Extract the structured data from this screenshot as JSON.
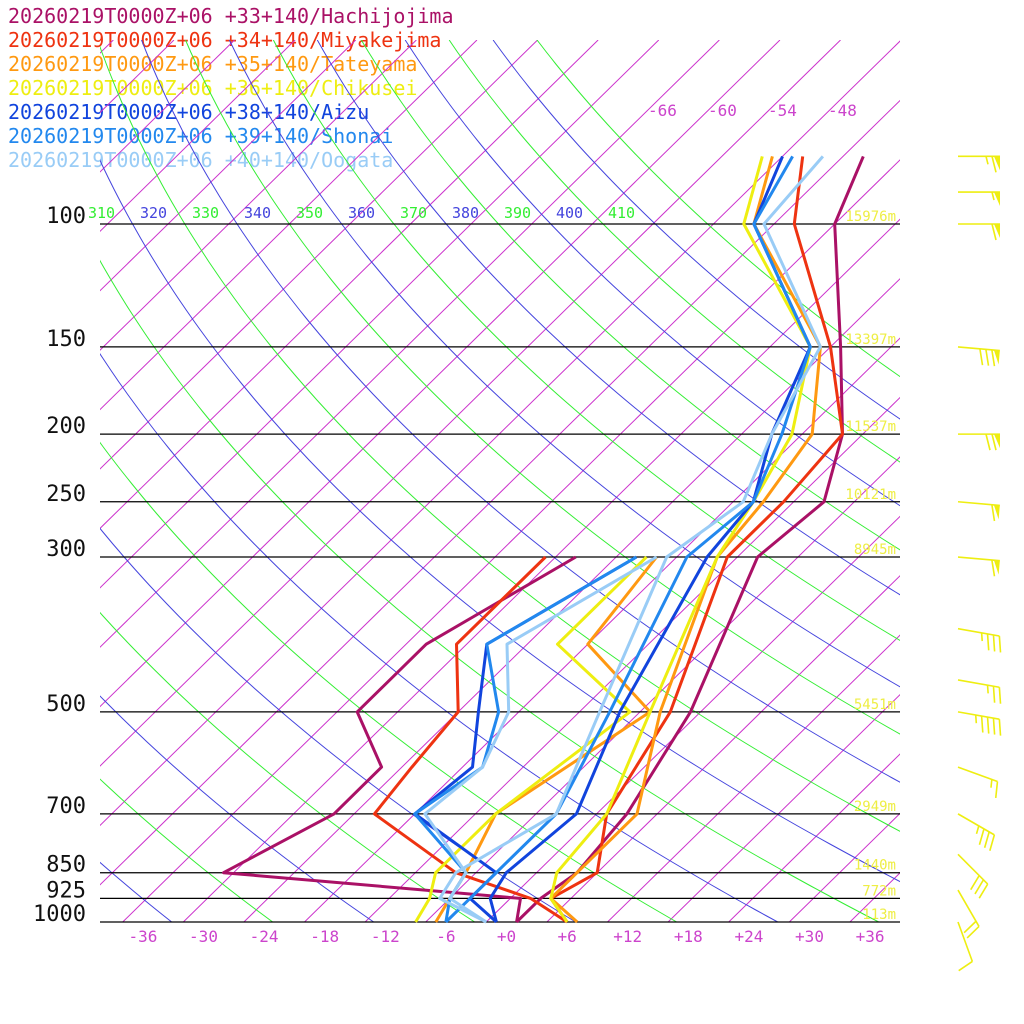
{
  "chart_data": {
    "type": "line",
    "title": "",
    "xlabel": "",
    "ylabel": "",
    "x_unit": "temperature (C)",
    "y_unit": "pressure (hPa)",
    "xlim": [
      -40,
      40
    ],
    "ylim": [
      1000,
      100
    ],
    "x_ticks": [
      "-36",
      "-30",
      "-24",
      "-18",
      "-12",
      "-6",
      "+0",
      "+6",
      "+12",
      "+18",
      "+24",
      "+30",
      "+36"
    ],
    "pressure_levels": [
      {
        "label": "100",
        "p": 100,
        "height": "15976m"
      },
      {
        "label": "150",
        "p": 150,
        "height": "13397m"
      },
      {
        "label": "200",
        "p": 200,
        "height": "11537m"
      },
      {
        "label": "250",
        "p": 250,
        "height": "10121m"
      },
      {
        "label": "300",
        "p": 300,
        "height": "8945m"
      },
      {
        "label": "500",
        "p": 500,
        "height": "5451m"
      },
      {
        "label": "700",
        "p": 700,
        "height": "2949m"
      },
      {
        "label": "850",
        "p": 850,
        "height": "1440m"
      },
      {
        "label": "925",
        "p": 925,
        "height": "772m"
      },
      {
        "label": "1000",
        "p": 1000,
        "height": "113m"
      }
    ],
    "isotherm_labels_top": [
      "-66",
      "-60",
      "-54",
      "-48"
    ],
    "theta_labels": [
      {
        "label": "310",
        "color": "#33ee33"
      },
      {
        "label": "320",
        "color": "#4444dd"
      },
      {
        "label": "330",
        "color": "#33ee33"
      },
      {
        "label": "340",
        "color": "#4444dd"
      },
      {
        "label": "350",
        "color": "#33ee33"
      },
      {
        "label": "360",
        "color": "#4444dd"
      },
      {
        "label": "370",
        "color": "#33ee33"
      },
      {
        "label": "380",
        "color": "#4444dd"
      },
      {
        "label": "390",
        "color": "#33ee33"
      },
      {
        "label": "400",
        "color": "#4444dd"
      },
      {
        "label": "410",
        "color": "#33ee33"
      }
    ],
    "series": [
      {
        "name": "20260219T0000Z+06 +33+140/Hachijojima",
        "color": "#aa1166",
        "temperature": [
          [
            1000,
            1
          ],
          [
            925,
            1
          ],
          [
            850,
            2
          ],
          [
            700,
            1
          ],
          [
            500,
            -3
          ],
          [
            300,
            -12
          ],
          [
            250,
            -11
          ],
          [
            200,
            -16
          ],
          [
            150,
            -25
          ],
          [
            100,
            -38
          ],
          [
            80,
            -42
          ]
        ],
        "dewpoint": [
          [
            1000,
            1
          ],
          [
            925,
            -1
          ],
          [
            850,
            -33
          ],
          [
            700,
            -28
          ],
          [
            600,
            -28
          ],
          [
            500,
            -36
          ],
          [
            400,
            -36
          ],
          [
            300,
            -30
          ]
        ]
      },
      {
        "name": "20260219T0000Z+06 +34+140/Miyakejima",
        "color": "#ee3311",
        "temperature": [
          [
            1000,
            6
          ],
          [
            925,
            2
          ],
          [
            850,
            4
          ],
          [
            700,
            -1
          ],
          [
            500,
            -5
          ],
          [
            300,
            -15
          ],
          [
            250,
            -15
          ],
          [
            200,
            -16
          ],
          [
            150,
            -26
          ],
          [
            100,
            -42
          ],
          [
            80,
            -48
          ]
        ],
        "dewpoint": [
          [
            1000,
            6
          ],
          [
            925,
            0
          ],
          [
            850,
            -10
          ],
          [
            700,
            -24
          ],
          [
            600,
            -25
          ],
          [
            500,
            -26
          ],
          [
            400,
            -33
          ],
          [
            300,
            -33
          ]
        ]
      },
      {
        "name": "20260219T0000Z+06 +35+140/Tateyama",
        "color": "#ff9911",
        "temperature": [
          [
            1000,
            7
          ],
          [
            925,
            2
          ],
          [
            850,
            2
          ],
          [
            700,
            2
          ],
          [
            500,
            -6
          ],
          [
            300,
            -16
          ],
          [
            250,
            -17
          ],
          [
            200,
            -19
          ],
          [
            150,
            -27
          ],
          [
            100,
            -46
          ],
          [
            80,
            -51
          ]
        ],
        "dewpoint": [
          [
            1000,
            -7
          ],
          [
            925,
            -8
          ],
          [
            850,
            -9
          ],
          [
            700,
            -12
          ],
          [
            500,
            -7
          ],
          [
            400,
            -20
          ],
          [
            300,
            -22
          ]
        ]
      },
      {
        "name": "20260219T0000Z+06 +36+140/Chikusei",
        "color": "#eeee11",
        "temperature": [
          [
            1000,
            6
          ],
          [
            925,
            2
          ],
          [
            850,
            0
          ],
          [
            700,
            -1
          ],
          [
            500,
            -7
          ],
          [
            300,
            -16
          ],
          [
            250,
            -18
          ],
          [
            200,
            -21
          ],
          [
            150,
            -28
          ],
          [
            100,
            -47
          ],
          [
            80,
            -52
          ]
        ],
        "dewpoint": [
          [
            1000,
            -9
          ],
          [
            925,
            -10
          ],
          [
            850,
            -12
          ],
          [
            700,
            -12
          ],
          [
            500,
            -9
          ],
          [
            400,
            -23
          ],
          [
            300,
            -23
          ]
        ]
      },
      {
        "name": "20260219T0000Z+06 +38+140/Aizu",
        "color": "#1144dd",
        "temperature": [
          [
            1000,
            -1
          ],
          [
            925,
            -4
          ],
          [
            850,
            -5
          ],
          [
            700,
            -4
          ],
          [
            500,
            -10
          ],
          [
            300,
            -17
          ],
          [
            250,
            -18
          ],
          [
            200,
            -23
          ],
          [
            150,
            -28
          ],
          [
            100,
            -46
          ],
          [
            80,
            -50
          ]
        ],
        "dewpoint": [
          [
            1000,
            -1
          ],
          [
            925,
            -6
          ],
          [
            850,
            -6
          ],
          [
            700,
            -20
          ],
          [
            600,
            -19
          ],
          [
            500,
            -24
          ],
          [
            400,
            -30
          ],
          [
            300,
            -24
          ]
        ]
      },
      {
        "name": "20260219T0000Z+06 +39+140/Shonai",
        "color": "#2288ee",
        "temperature": [
          [
            1000,
            -6
          ],
          [
            925,
            -6
          ],
          [
            850,
            -6
          ],
          [
            700,
            -6
          ],
          [
            500,
            -11
          ],
          [
            300,
            -19
          ],
          [
            250,
            -18
          ],
          [
            200,
            -22
          ],
          [
            150,
            -28
          ],
          [
            100,
            -46
          ],
          [
            80,
            -49
          ]
        ],
        "dewpoint": [
          [
            1000,
            -6
          ],
          [
            925,
            -8
          ],
          [
            850,
            -9
          ],
          [
            700,
            -20
          ],
          [
            600,
            -18
          ],
          [
            500,
            -22
          ],
          [
            400,
            -30
          ],
          [
            300,
            -24
          ]
        ]
      },
      {
        "name": "20260219T0000Z+06 +40+140/Oogata",
        "color": "#99ccf6",
        "temperature": [
          [
            1000,
            -2
          ],
          [
            925,
            -9
          ],
          [
            850,
            -10
          ],
          [
            700,
            -6
          ],
          [
            500,
            -12
          ],
          [
            300,
            -21
          ],
          [
            250,
            -19
          ],
          [
            200,
            -23
          ],
          [
            150,
            -27
          ],
          [
            100,
            -45
          ],
          [
            80,
            -46
          ]
        ],
        "dewpoint": [
          [
            1000,
            -2
          ],
          [
            925,
            -8
          ],
          [
            850,
            -9
          ],
          [
            700,
            -19
          ],
          [
            600,
            -18
          ],
          [
            500,
            -21
          ],
          [
            400,
            -28
          ],
          [
            300,
            -22
          ]
        ]
      }
    ],
    "wind_barbs": [
      {
        "p": 80,
        "speed": 65,
        "dir": 270
      },
      {
        "p": 90,
        "speed": 55,
        "dir": 270
      },
      {
        "p": 100,
        "speed": 60,
        "dir": 270
      },
      {
        "p": 150,
        "speed": 80,
        "dir": 275
      },
      {
        "p": 200,
        "speed": 70,
        "dir": 270
      },
      {
        "p": 250,
        "speed": 60,
        "dir": 275
      },
      {
        "p": 300,
        "speed": 60,
        "dir": 275
      },
      {
        "p": 380,
        "speed": 35,
        "dir": 280
      },
      {
        "p": 450,
        "speed": 25,
        "dir": 280
      },
      {
        "p": 500,
        "speed": 45,
        "dir": 280
      },
      {
        "p": 600,
        "speed": 15,
        "dir": 290
      },
      {
        "p": 700,
        "speed": 35,
        "dir": 300
      },
      {
        "p": 800,
        "speed": 30,
        "dir": 315
      },
      {
        "p": 900,
        "speed": 20,
        "dir": 330
      },
      {
        "p": 1000,
        "speed": 10,
        "dir": 340
      }
    ],
    "colors": {
      "isotherm": "#cc33cc",
      "dry_adiabat": "#4444dd",
      "moist_adiabat": "#33ee33",
      "height_label": "#eeee44",
      "barb": "#eeee11",
      "tick_label": "#cc44cc",
      "grid": "#000000"
    }
  }
}
